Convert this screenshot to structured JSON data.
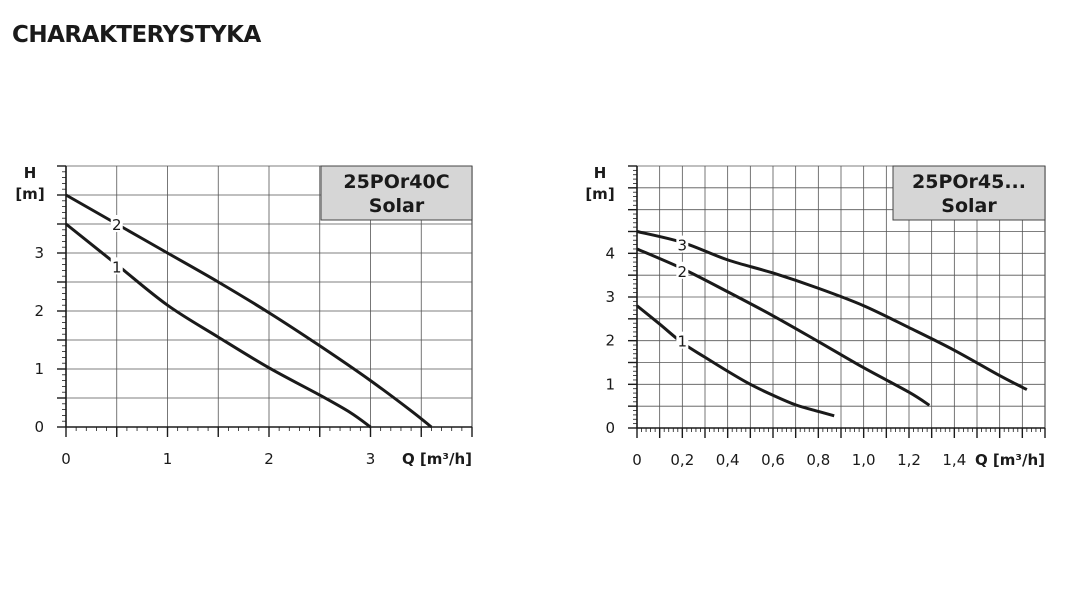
{
  "page": {
    "title": "CHARAKTERYSTYKA"
  },
  "colors": {
    "curve": "#1a1a1a",
    "grid": "#555555",
    "label_box": "#d6d6d6"
  },
  "chart_data": [
    {
      "type": "line",
      "label_box": [
        "25POr40C",
        "Solar"
      ],
      "ylabel_lines": [
        "H",
        "[m]"
      ],
      "xlabel": "Q [m³/h]",
      "xlim": [
        0,
        4
      ],
      "ylim": [
        0,
        4.5
      ],
      "xticks": [
        0,
        1,
        2,
        3
      ],
      "xtick_labels": [
        "0",
        "1",
        "2",
        "3"
      ],
      "yticks": [
        0,
        1,
        2,
        3
      ],
      "ytick_labels": [
        "0",
        "1",
        "2",
        "3"
      ],
      "grid": true,
      "series": [
        {
          "name": "1",
          "label_pos": [
            0.5,
            2.77
          ],
          "points": [
            [
              0,
              3.5
            ],
            [
              0.5,
              2.8
            ],
            [
              1,
              2.1
            ],
            [
              1.5,
              1.55
            ],
            [
              2,
              1.02
            ],
            [
              2.5,
              0.55
            ],
            [
              2.8,
              0.25
            ],
            [
              3.0,
              0.0
            ]
          ]
        },
        {
          "name": "2",
          "label_pos": [
            0.5,
            3.5
          ],
          "points": [
            [
              0,
              4.0
            ],
            [
              0.5,
              3.5
            ],
            [
              1,
              3.0
            ],
            [
              1.5,
              2.5
            ],
            [
              2,
              1.97
            ],
            [
              2.5,
              1.4
            ],
            [
              3,
              0.8
            ],
            [
              3.4,
              0.28
            ],
            [
              3.6,
              0.0
            ]
          ]
        }
      ]
    },
    {
      "type": "line",
      "label_box": [
        "25POr45...",
        "Solar"
      ],
      "ylabel_lines": [
        "H",
        "[m]"
      ],
      "xlabel": "Q [m³/h]",
      "xlim": [
        0,
        1.8
      ],
      "ylim": [
        0,
        6
      ],
      "xticks": [
        0,
        0.2,
        0.4,
        0.6,
        0.8,
        1.0,
        1.2,
        1.4
      ],
      "xtick_labels": [
        "0",
        "0,2",
        "0,4",
        "0,6",
        "0,8",
        "1,0",
        "1,2",
        "1,4"
      ],
      "yticks": [
        0,
        1,
        2,
        3,
        4
      ],
      "ytick_labels": [
        "0",
        "1",
        "2",
        "3",
        "4"
      ],
      "grid": true,
      "series": [
        {
          "name": "1",
          "label_pos": [
            0.2,
            2.0
          ],
          "points": [
            [
              0,
              2.8
            ],
            [
              0.1,
              2.38
            ],
            [
              0.2,
              1.95
            ],
            [
              0.3,
              1.62
            ],
            [
              0.4,
              1.3
            ],
            [
              0.5,
              1.0
            ],
            [
              0.6,
              0.75
            ],
            [
              0.7,
              0.53
            ],
            [
              0.8,
              0.38
            ],
            [
              0.87,
              0.28
            ]
          ]
        },
        {
          "name": "2",
          "label_pos": [
            0.2,
            3.6
          ],
          "points": [
            [
              0,
              4.1
            ],
            [
              0.2,
              3.65
            ],
            [
              0.4,
              3.12
            ],
            [
              0.6,
              2.57
            ],
            [
              0.8,
              1.98
            ],
            [
              1.0,
              1.38
            ],
            [
              1.2,
              0.82
            ],
            [
              1.29,
              0.52
            ]
          ]
        },
        {
          "name": "3",
          "label_pos": [
            0.2,
            4.2
          ],
          "points": [
            [
              0,
              4.5
            ],
            [
              0.2,
              4.25
            ],
            [
              0.4,
              3.85
            ],
            [
              0.6,
              3.55
            ],
            [
              0.8,
              3.2
            ],
            [
              1.0,
              2.8
            ],
            [
              1.2,
              2.3
            ],
            [
              1.4,
              1.78
            ],
            [
              1.6,
              1.2
            ],
            [
              1.72,
              0.88
            ]
          ]
        }
      ]
    }
  ]
}
